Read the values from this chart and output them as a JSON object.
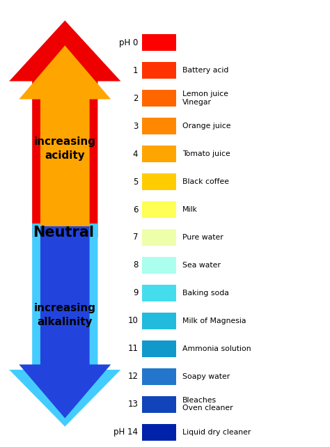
{
  "bg_color": "#ffffff",
  "bar_colors": [
    "#FF0000",
    "#FF3300",
    "#FF6600",
    "#FF8800",
    "#FFA500",
    "#FFCC00",
    "#FFFF55",
    "#EEFFAA",
    "#AAFFEE",
    "#44DDEE",
    "#22BBDD",
    "#1199CC",
    "#2277CC",
    "#1144BB",
    "#0022AA"
  ],
  "labels": [
    "",
    "Battery acid",
    "Lemon juice\nVinegar",
    "Orange juice",
    "Tomato juice",
    "Black coffee",
    "Milk",
    "Pure water",
    "Sea water",
    "Baking soda",
    "Milk of Magnesia",
    "Ammonia solution",
    "Soapy water",
    "Bleaches\nOven cleaner",
    "Liquid dry cleaner"
  ],
  "acid_color_red": "#EE0000",
  "acid_color_orange": "#FFA500",
  "alk_color_cyan": "#44CCFF",
  "alk_color_blue": "#2244DD",
  "neutral_text": "Neutral",
  "acidity_text": "increasing\nacidity",
  "alkalinity_text": "increasing\nalkalinity"
}
